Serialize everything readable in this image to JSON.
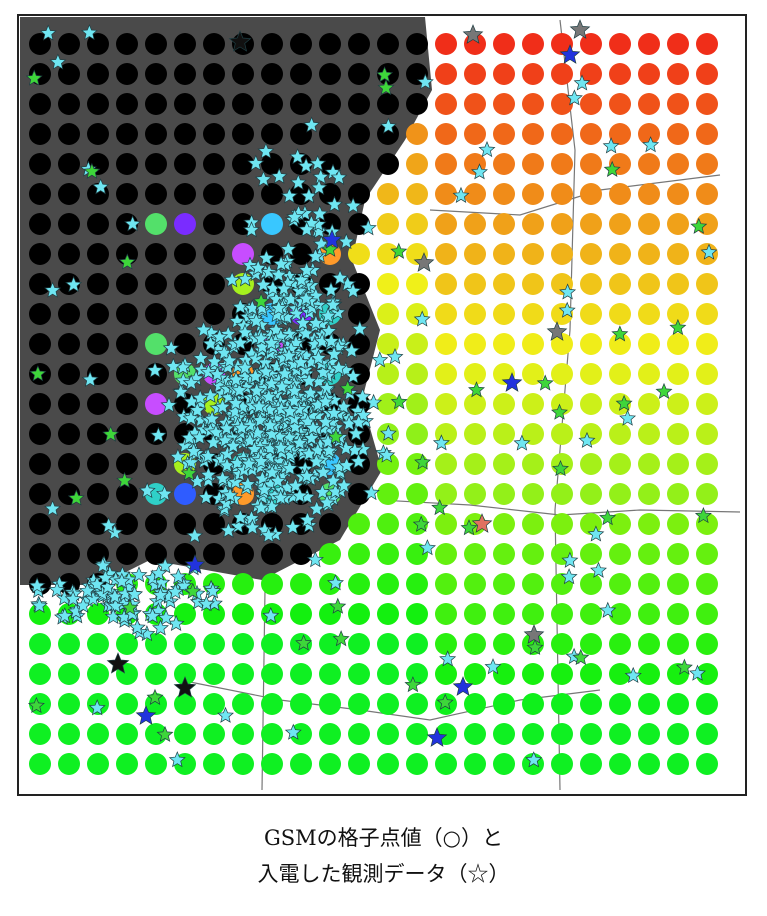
{
  "caption": {
    "line1": "GSMの格子点値（○）と",
    "line2": "入電した観測データ（☆）"
  }
}
